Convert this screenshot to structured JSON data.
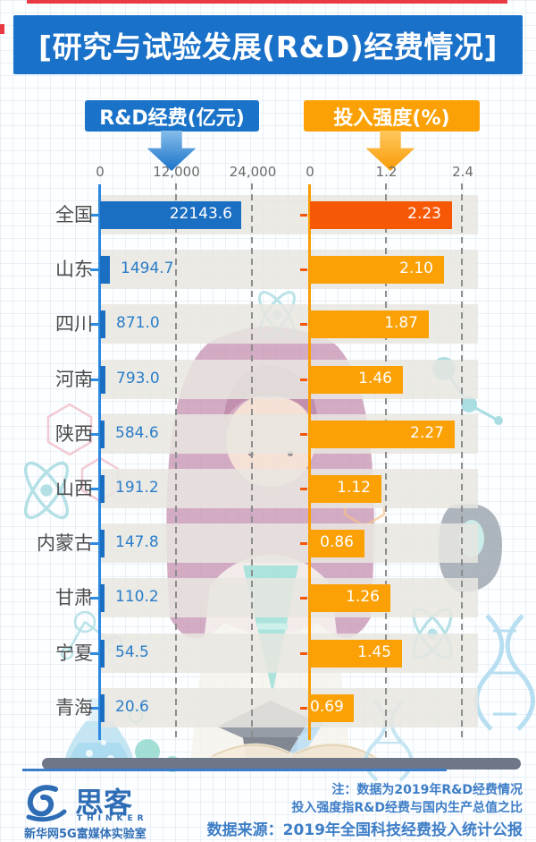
{
  "title": "[研究与试验发展(R&D)经费情况]",
  "legend": {
    "left_label": "R&D经费(亿元)",
    "right_label": "投入强度(%)"
  },
  "chart_data": {
    "type": "bar",
    "orientation": "horizontal",
    "grid": true,
    "legend_position": "top",
    "highlight_category": "全国",
    "categories": [
      "全国",
      "山东",
      "四川",
      "河南",
      "陕西",
      "山西",
      "内蒙古",
      "甘肃",
      "宁夏",
      "青海"
    ],
    "series": [
      {
        "name": "R&D经费(亿元)",
        "unit": "亿元",
        "values": [
          22143.6,
          1494.7,
          871.0,
          793.0,
          584.6,
          191.2,
          147.8,
          110.2,
          54.5,
          20.6
        ],
        "labels": [
          "22143.6",
          "1494.7",
          "871.0",
          "793.0",
          "584.6",
          "191.2",
          "147.8",
          "110.2",
          "54.5",
          "20.6"
        ],
        "axis_range": [
          0,
          24000
        ],
        "axis_ticks": [
          "0",
          "12,000",
          "24,000"
        ],
        "color": "#1b6fc3"
      },
      {
        "name": "投入强度(%)",
        "unit": "%",
        "values": [
          2.23,
          2.1,
          1.87,
          1.46,
          2.27,
          1.12,
          0.86,
          1.26,
          1.45,
          0.69
        ],
        "labels": [
          "2.23",
          "2.10",
          "1.87",
          "1.46",
          "2.27",
          "1.12",
          "0.86",
          "1.26",
          "1.45",
          "0.69"
        ],
        "axis_range": [
          0,
          2.4
        ],
        "axis_ticks": [
          "0",
          "1.2",
          "2.4"
        ],
        "color": "#fba105",
        "highlight_color": "#f75806"
      }
    ]
  },
  "colors": {
    "banner_blue": "#1a71c9",
    "legend_blue": "#1a73c8",
    "legend_orange": "#fba105",
    "bar_blue": "#1b6fc3",
    "bar_orange": "#fba105",
    "bar_orange_highlight": "#f75806",
    "accent_red": "#e93a43",
    "note_blue": "#3e7ec7",
    "track_gray": "#e8e6e1"
  },
  "footer": {
    "note_line1": "注：数据为2019年R&D经费情况",
    "note_line2": "投入强度指R&D经费与国内生产总值之比",
    "source_line": "数据来源：2019年全国科技经费投入统计公报",
    "logo_name": "思客",
    "logo_sub": "THINKER",
    "logo_org": "新华网5G富媒体实验室"
  }
}
